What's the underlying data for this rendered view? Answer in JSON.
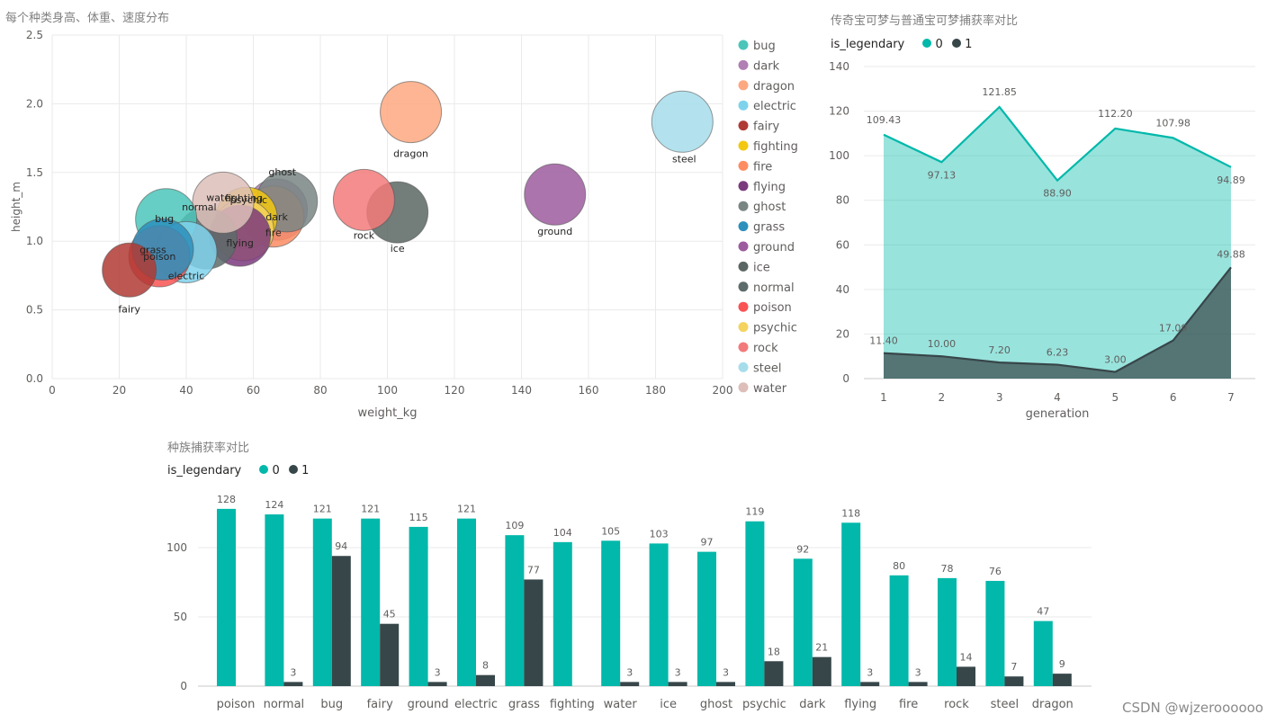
{
  "bubble": {
    "title": "每个种类身高、体重、速度分布",
    "xlabel": "weight_kg",
    "ylabel": "height_m"
  },
  "line": {
    "title": "传奇宝可梦与普通宝可梦捕获率对比",
    "legend_title": "is_legendary",
    "xlabel": "generation"
  },
  "bar": {
    "title": "种族捕获率对比",
    "legend_title": "is_legendary"
  },
  "watermark": "CSDN @wjzeroooooo",
  "colors": {
    "s0": "#01B8AA",
    "s1": "#374649"
  },
  "chart_data": [
    {
      "type": "scatter",
      "title": "每个种类身高、体重、速度分布",
      "xlabel": "weight_kg",
      "ylabel": "height_m",
      "xlim": [
        0,
        200
      ],
      "ylim": [
        0,
        2.5
      ],
      "xticks": [
        "0",
        "20",
        "40",
        "60",
        "80",
        "100",
        "120",
        "140",
        "160",
        "180",
        "200"
      ],
      "yticks": [
        "0.0",
        "0.5",
        "1.0",
        "1.5",
        "2.0",
        "2.5"
      ],
      "grid": true,
      "legend_position": "right",
      "points": [
        {
          "name": "bug",
          "x": 34,
          "y": 1.16,
          "color": "#4BC5BA",
          "show_label": true
        },
        {
          "name": "dark",
          "x": 67,
          "y": 1.23,
          "color": "#B07FB3",
          "show_label": true
        },
        {
          "name": "dragon",
          "x": 107,
          "y": 1.94,
          "color": "#FDA880",
          "show_label": true
        },
        {
          "name": "electric",
          "x": 40,
          "y": 0.92,
          "color": "#7FD2EC",
          "show_label": true
        },
        {
          "name": "fairy",
          "x": 23,
          "y": 0.79,
          "color": "#B03A34",
          "show_label": true
        },
        {
          "name": "fighting",
          "x": 58,
          "y": 1.17,
          "color": "#F2C811",
          "show_label": true
        },
        {
          "name": "fire",
          "x": 66,
          "y": 1.18,
          "color": "#FD8C63",
          "show_label": true
        },
        {
          "name": "flying",
          "x": 56,
          "y": 1.04,
          "color": "#7B3A7E",
          "show_label": true
        },
        {
          "name": "ghost",
          "x": 70,
          "y": 1.29,
          "color": "#798684",
          "show_label": true
        },
        {
          "name": "grass",
          "x": 33,
          "y": 0.94,
          "color": "#2C8FBC",
          "show_label": true
        },
        {
          "name": "ground",
          "x": 150,
          "y": 1.34,
          "color": "#9C5C9E",
          "show_label": true
        },
        {
          "name": "ice",
          "x": 103,
          "y": 1.21,
          "color": "#5A6663",
          "show_label": true
        },
        {
          "name": "normal",
          "x": 46,
          "y": 1.02,
          "color": "#5D6B6A",
          "show_label": true
        },
        {
          "name": "poison",
          "x": 32,
          "y": 0.89,
          "color": "#F95353",
          "show_label": true
        },
        {
          "name": "psychic",
          "x": 57,
          "y": 1.08,
          "color": "#F4D35E",
          "show_label": true
        },
        {
          "name": "rock",
          "x": 93,
          "y": 1.3,
          "color": "#F37A7A",
          "show_label": true
        },
        {
          "name": "steel",
          "x": 188,
          "y": 1.87,
          "color": "#A6DDEB",
          "show_label": true
        },
        {
          "name": "water",
          "x": 51,
          "y": 1.28,
          "color": "#DDBEB9",
          "show_label": true
        }
      ]
    },
    {
      "type": "area",
      "title": "传奇宝可梦与普通宝可梦捕获率对比",
      "xlabel": "generation",
      "ylabel": "",
      "x": [
        1,
        2,
        3,
        4,
        5,
        6,
        7
      ],
      "ylim": [
        0,
        140
      ],
      "yticks": [
        "0",
        "20",
        "40",
        "60",
        "80",
        "100",
        "120",
        "140"
      ],
      "grid": true,
      "legend_position": "top-left",
      "series": [
        {
          "name": "0",
          "values": [
            109.43,
            97.13,
            121.85,
            88.9,
            112.2,
            107.98,
            94.89
          ],
          "labels": [
            "109.43",
            "97.13",
            "121.85",
            "88.90",
            "112.20",
            "107.98",
            "94.89"
          ]
        },
        {
          "name": "1",
          "values": [
            11.4,
            10.0,
            7.2,
            6.23,
            3.0,
            17.09,
            49.88
          ],
          "labels": [
            "11.40",
            "10.00",
            "7.20",
            "6.23",
            "3.00",
            "17.09",
            "49.88"
          ]
        }
      ]
    },
    {
      "type": "bar",
      "title": "种族捕获率对比",
      "xlabel": "",
      "ylabel": "",
      "categories": [
        "poison",
        "normal",
        "bug",
        "fairy",
        "ground",
        "electric",
        "grass",
        "fighting",
        "water",
        "ice",
        "ghost",
        "psychic",
        "dark",
        "flying",
        "fire",
        "rock",
        "steel",
        "dragon"
      ],
      "ylim": [
        0,
        130
      ],
      "yticks": [
        "0",
        "50",
        "100"
      ],
      "grid": true,
      "legend_position": "top-left",
      "series": [
        {
          "name": "0",
          "values": [
            128,
            124,
            121,
            121,
            115,
            121,
            109,
            104,
            105,
            103,
            97,
            119,
            92,
            118,
            80,
            78,
            76,
            47
          ]
        },
        {
          "name": "1",
          "values": [
            null,
            3,
            94,
            45,
            3,
            8,
            77,
            null,
            3,
            3,
            3,
            18,
            21,
            3,
            3,
            14,
            7,
            9
          ]
        }
      ]
    }
  ]
}
